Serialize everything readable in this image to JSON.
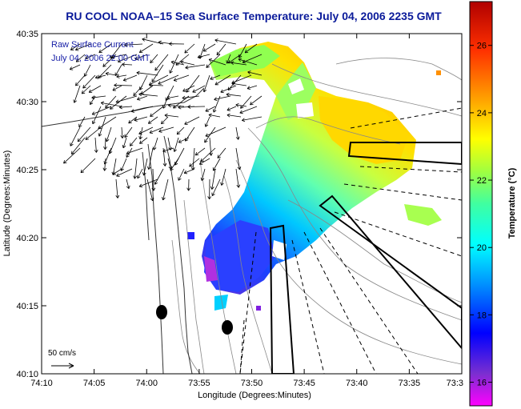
{
  "title": "RU COOL   NOAA–15  Sea Surface Temperature:  July 04, 2006 2235 GMT",
  "legend": {
    "line1": "Raw Surface Current",
    "line2": "July 04, 2006 22:00 GMT"
  },
  "scale": {
    "label": "50 cm/s"
  },
  "axes": {
    "xlabel": "Longitude (Degrees:Minutes)",
    "ylabel": "Latitude (Degrees:Minutes)",
    "lon_ticks": [
      "74:10",
      "74:05",
      "74:00",
      "73:55",
      "73:50",
      "73:45",
      "73:40",
      "73:35",
      "73:3"
    ],
    "lat_ticks": [
      "40:35",
      "40:30",
      "40:25",
      "40:20",
      "40:15",
      "40:10"
    ]
  },
  "colorbar": {
    "title": "Temperature (°C)",
    "ticks": [
      "26",
      "24",
      "22",
      "20",
      "18",
      "16"
    ],
    "tick_values": [
      26,
      24,
      22,
      20,
      18,
      16
    ],
    "range": [
      15.3,
      27.3
    ],
    "colors": [
      "#ff00ff",
      "#7a2fd0",
      "#0000ff",
      "#00a0ff",
      "#00ffff",
      "#40ffa0",
      "#a0ff40",
      "#ffff00",
      "#ffa000",
      "#ff3000",
      "#c00000"
    ]
  },
  "colors": {
    "title": "#0a1a9a",
    "legend": "#1a22a8"
  }
}
